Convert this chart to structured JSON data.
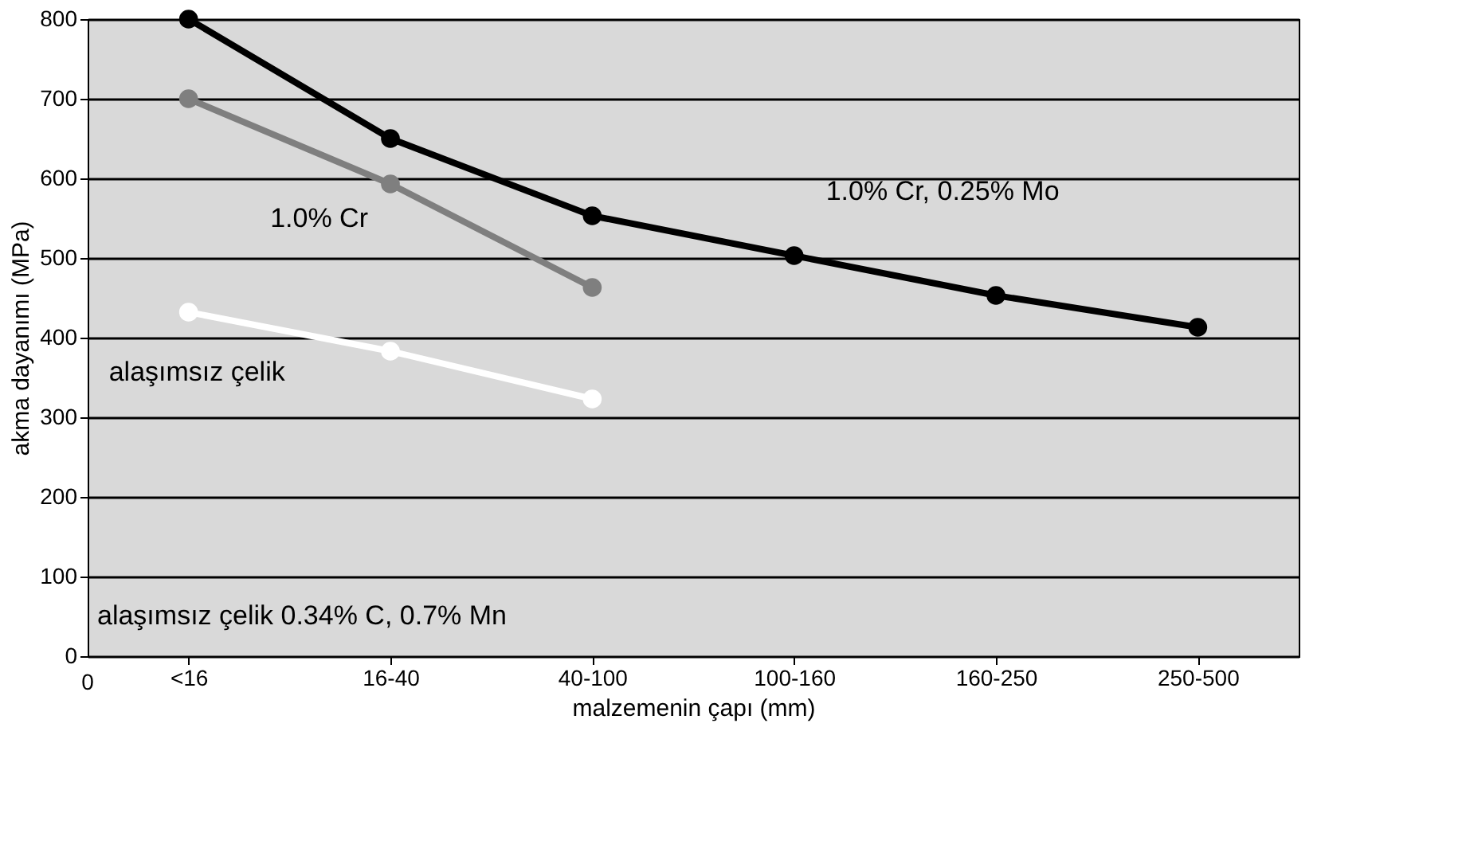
{
  "chart_data": {
    "type": "line",
    "xlabel": "malzemenin çapı (mm)",
    "ylabel": "akma dayanımı (MPa)",
    "categories": [
      "<16",
      "16-40",
      "40-100",
      "100-160",
      "160-250",
      "250-500"
    ],
    "series": [
      {
        "name": "1.0% Cr, 0.25% Mo",
        "color": "#000000",
        "values": [
          800,
          650,
          553,
          503,
          453,
          413
        ]
      },
      {
        "name": "1.0% Cr",
        "color": "#7f7f7f",
        "values": [
          700,
          593,
          463,
          null,
          null,
          null
        ]
      },
      {
        "name": "alaşımsız çelik",
        "color": "#ffffff",
        "values": [
          432,
          383,
          323,
          null,
          null,
          null
        ]
      }
    ],
    "ylim": [
      0,
      800
    ],
    "yticks": [
      0,
      100,
      200,
      300,
      400,
      500,
      600,
      700,
      800
    ],
    "grid": "y",
    "marker": "circle",
    "line_style": "solid",
    "annotations": [
      "alaşımsız çelik 0.34% C, 0.7% Mn",
      "0"
    ]
  }
}
